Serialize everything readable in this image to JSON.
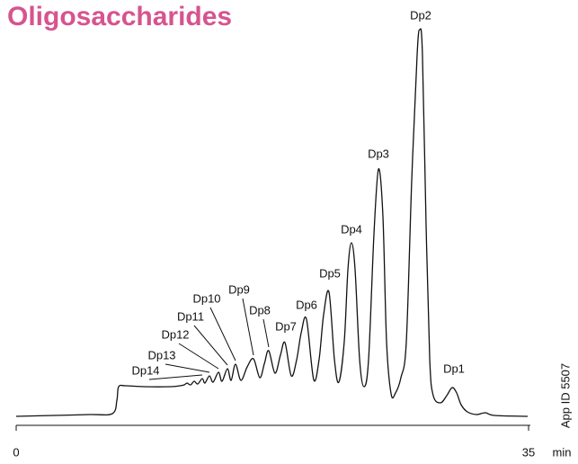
{
  "chart_data": {
    "type": "line",
    "title": "Oligosaccharides",
    "xlabel": "min",
    "side_note": "App ID 5507",
    "xlim": [
      0,
      35
    ],
    "xticks": [
      0,
      35
    ],
    "color": "#111111",
    "title_color": "#d6548f",
    "x": [
      0,
      2.58,
      5.04,
      6.57,
      6.88,
      7.0,
      7.49,
      8.72,
      10.56,
      11.18,
      11.48,
      11.67,
      11.91,
      12.16,
      12.4,
      12.71,
      12.89,
      13.2,
      13.45,
      13.82,
      14.06,
      14.43,
      14.68,
      14.98,
      15.35,
      15.78,
      16.21,
      16.64,
      16.96,
      17.25,
      17.68,
      18.05,
      18.36,
      18.79,
      19.16,
      19.47,
      19.83,
      20.32,
      20.69,
      21.0,
      21.37,
      21.74,
      22.04,
      22.41,
      22.66,
      22.9,
      23.15,
      23.46,
      23.76,
      24.07,
      24.44,
      24.75,
      25.05,
      25.3,
      25.61,
      25.91,
      26.28,
      26.65,
      27.02,
      27.39,
      27.57,
      27.75,
      28.0,
      28.25,
      28.49,
      28.98,
      29.41,
      29.78,
      30.09,
      30.39,
      30.82,
      31.44,
      32.05,
      32.67,
      34.94
    ],
    "values": [
      0,
      1,
      2,
      3,
      18,
      33,
      34,
      33,
      33,
      34,
      35,
      37,
      35,
      39,
      36,
      42,
      37,
      45,
      38,
      49,
      39,
      53,
      40,
      58,
      40,
      55,
      64,
      43,
      59,
      73,
      48,
      68,
      82,
      45,
      63,
      93,
      108,
      41,
      63,
      113,
      138,
      63,
      38,
      83,
      163,
      193,
      163,
      63,
      33,
      63,
      203,
      275,
      223,
      83,
      25,
      26,
      43,
      83,
      263,
      403,
      430,
      403,
      213,
      63,
      23,
      15,
      23,
      32,
      26,
      13,
      5,
      2,
      4,
      1,
      0
    ],
    "annotations": [
      {
        "text": "Dp1",
        "x": 29.78
      },
      {
        "text": "Dp2",
        "x": 27.57
      },
      {
        "text": "Dp3",
        "x": 24.75
      },
      {
        "text": "Dp4",
        "x": 22.9
      },
      {
        "text": "Dp5",
        "x": 21.37
      },
      {
        "text": "Dp6",
        "x": 19.83
      },
      {
        "text": "Dp7",
        "x": 18.36
      },
      {
        "text": "Dp8",
        "x": 17.25
      },
      {
        "text": "Dp9",
        "x": 16.21
      },
      {
        "text": "Dp10",
        "x": 14.98
      },
      {
        "text": "Dp11",
        "x": 14.43
      },
      {
        "text": "Dp12",
        "x": 13.82
      },
      {
        "text": "Dp13",
        "x": 13.2
      },
      {
        "text": "Dp14",
        "x": 12.71
      }
    ]
  }
}
